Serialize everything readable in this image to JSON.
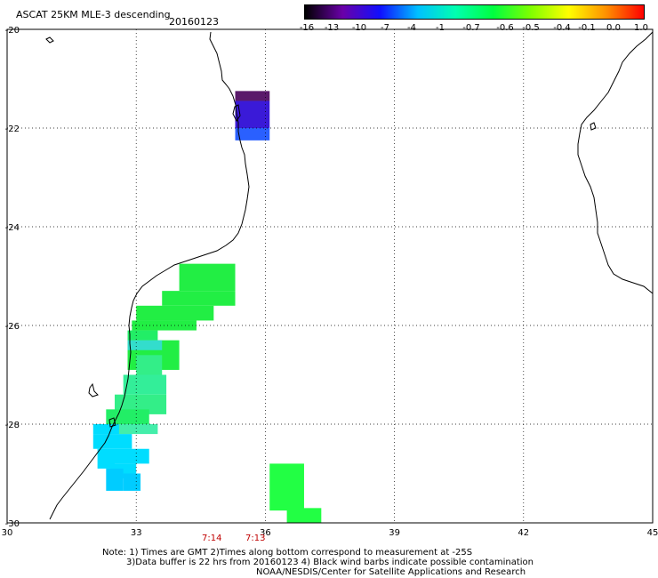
{
  "header": {
    "title": "ASCAT 25KM MLE-3 descending",
    "date": "20160123"
  },
  "colorbar": {
    "labels": [
      "-16",
      "-13",
      "-10",
      "-7",
      "-4",
      "-1",
      "-0.7",
      "-0.6",
      "-0.5",
      "-0.4",
      "-0.1",
      "0.0",
      "1.0"
    ],
    "colors": [
      "#000000",
      "#6a00a8",
      "#1010ff",
      "#00c0ff",
      "#00ffb0",
      "#00ff40",
      "#80ff00",
      "#ffff00",
      "#ff9000",
      "#ff0000"
    ]
  },
  "axes": {
    "x_ticks": [
      "30",
      "33",
      "36",
      "39",
      "42",
      "45"
    ],
    "y_ticks": [
      "-20",
      "-22",
      "-24",
      "-26",
      "-28",
      "-30"
    ]
  },
  "times": [
    {
      "label": "7:14",
      "lon": 34.7
    },
    {
      "label": "7:13",
      "lon": 35.8
    }
  ],
  "notes": {
    "line1": "Note: 1) Times are GMT 2)Times along bottom correspond to measurement at -25S",
    "line2": "3)Data buffer is 22 hrs from 20160123 4) Black wind barbs indicate possible contamination",
    "line3": "NOAA/NESDIS/Center for Satellite Applications and Research"
  },
  "map_extent": {
    "lon_min": 30,
    "lon_max": 45,
    "lat_min": -30,
    "lat_max": -20
  },
  "cells": [
    {
      "lon0": 35.3,
      "lon1": 36.1,
      "lat0": -21.45,
      "lat1": -21.25,
      "color": "#5a1a6a"
    },
    {
      "lon0": 35.3,
      "lon1": 36.1,
      "lat0": -22.0,
      "lat1": -21.45,
      "color": "#3a1ad8"
    },
    {
      "lon0": 35.3,
      "lon1": 36.1,
      "lat0": -22.25,
      "lat1": -22.0,
      "color": "#2a60ff"
    },
    {
      "lon0": 34.0,
      "lon1": 35.3,
      "lat0": -25.3,
      "lat1": -24.75,
      "color": "#22ee44"
    },
    {
      "lon0": 33.6,
      "lon1": 35.3,
      "lat0": -25.6,
      "lat1": -25.3,
      "color": "#22ee44"
    },
    {
      "lon0": 33.0,
      "lon1": 34.8,
      "lat0": -25.9,
      "lat1": -25.6,
      "color": "#22ee44"
    },
    {
      "lon0": 32.9,
      "lon1": 34.4,
      "lat0": -26.1,
      "lat1": -25.9,
      "color": "#22ee44"
    },
    {
      "lon0": 32.8,
      "lon1": 33.5,
      "lat0": -26.3,
      "lat1": -26.1,
      "color": "#22ee66"
    },
    {
      "lon0": 32.8,
      "lon1": 34.0,
      "lat0": -26.9,
      "lat1": -26.3,
      "color": "#22ee44"
    },
    {
      "lon0": 32.8,
      "lon1": 33.6,
      "lat0": -26.5,
      "lat1": -26.3,
      "color": "#33ddcc"
    },
    {
      "lon0": 33.0,
      "lon1": 33.6,
      "lat0": -27.0,
      "lat1": -26.6,
      "color": "#33ee88"
    },
    {
      "lon0": 32.7,
      "lon1": 33.7,
      "lat0": -27.4,
      "lat1": -27.0,
      "color": "#33ee99"
    },
    {
      "lon0": 32.5,
      "lon1": 33.7,
      "lat0": -27.8,
      "lat1": -27.4,
      "color": "#33ee88"
    },
    {
      "lon0": 32.3,
      "lon1": 33.3,
      "lat0": -28.0,
      "lat1": -27.7,
      "color": "#22ee66"
    },
    {
      "lon0": 32.2,
      "lon1": 33.5,
      "lat0": -28.2,
      "lat1": -28.0,
      "color": "#44eeaa"
    },
    {
      "lon0": 32.0,
      "lon1": 32.6,
      "lat0": -28.2,
      "lat1": -28.0,
      "color": "#00ddff"
    },
    {
      "lon0": 32.0,
      "lon1": 32.9,
      "lat0": -28.5,
      "lat1": -28.2,
      "color": "#00ddff"
    },
    {
      "lon0": 32.1,
      "lon1": 32.5,
      "lat0": -28.9,
      "lat1": -28.5,
      "color": "#00ddff"
    },
    {
      "lon0": 32.5,
      "lon1": 33.3,
      "lat0": -28.8,
      "lat1": -28.5,
      "color": "#00ddff"
    },
    {
      "lon0": 32.4,
      "lon1": 33.0,
      "lat0": -29.1,
      "lat1": -28.8,
      "color": "#00ddff"
    },
    {
      "lon0": 32.3,
      "lon1": 32.7,
      "lat0": -29.35,
      "lat1": -28.9,
      "color": "#00ccff"
    },
    {
      "lon0": 32.7,
      "lon1": 33.1,
      "lat0": -29.35,
      "lat1": -29.0,
      "color": "#00ccff"
    },
    {
      "lon0": 36.1,
      "lon1": 36.9,
      "lat0": -29.75,
      "lat1": -28.8,
      "color": "#22ff44"
    },
    {
      "lon0": 36.5,
      "lon1": 37.3,
      "lat0": -30.0,
      "lat1": -29.7,
      "color": "#22ff44"
    }
  ]
}
